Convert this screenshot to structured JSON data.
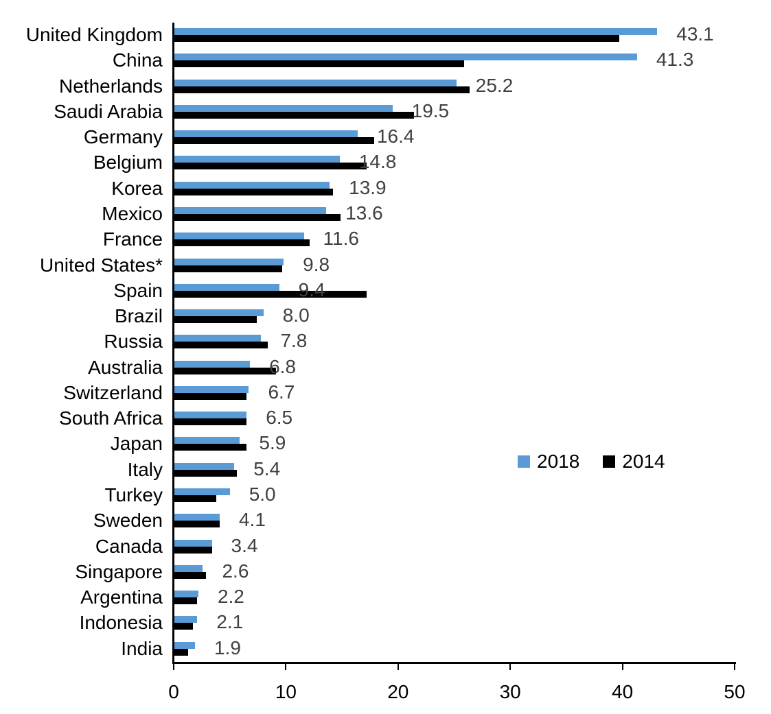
{
  "chart_data": {
    "type": "bar",
    "orientation": "horizontal",
    "title": "",
    "xlabel": "",
    "ylabel": "",
    "xlim": [
      0,
      50
    ],
    "xticks": [
      0,
      10,
      20,
      30,
      40,
      50
    ],
    "grid": false,
    "legend_position": "middle-right",
    "categories": [
      "United Kingdom",
      "China",
      "Netherlands",
      "Saudi Arabia",
      "Germany",
      "Belgium",
      "Korea",
      "Mexico",
      "France",
      "United States*",
      "Spain",
      "Brazil",
      "Russia",
      "Australia",
      "Switzerland",
      "South Africa",
      "Japan",
      "Italy",
      "Turkey",
      "Sweden",
      "Canada",
      "Singapore",
      "Argentina",
      "Indonesia",
      "India"
    ],
    "series": [
      {
        "name": "2018",
        "color": "#5B9BD5",
        "values": [
          43.1,
          41.3,
          25.2,
          19.5,
          16.4,
          14.8,
          13.9,
          13.6,
          11.6,
          9.8,
          9.4,
          8.0,
          7.8,
          6.8,
          6.7,
          6.5,
          5.9,
          5.4,
          5.0,
          4.1,
          3.4,
          2.6,
          2.2,
          2.1,
          1.9
        ],
        "data_labels_shown": true
      },
      {
        "name": "2014",
        "color": "#000000",
        "values": [
          39.7,
          25.9,
          26.4,
          21.4,
          17.9,
          17.2,
          14.2,
          14.9,
          12.1,
          9.7,
          17.2,
          7.4,
          8.4,
          9.1,
          6.5,
          6.5,
          6.5,
          5.6,
          3.8,
          4.1,
          3.4,
          2.9,
          2.1,
          1.7,
          1.3
        ],
        "data_labels_shown": false
      }
    ],
    "data_labels": [
      "43.1",
      "41.3",
      "25.2",
      "19.5",
      "16.4",
      "14.8",
      "13.9",
      "13.6",
      "11.6",
      "9.8",
      "9.4",
      "8.0",
      "7.8",
      "6.8",
      "6.7",
      "6.5",
      "5.9",
      "5.4",
      "5.0",
      "4.1",
      "3.4",
      "2.6",
      "2.2",
      "2.1",
      "1.9"
    ]
  },
  "legend": {
    "items": [
      {
        "label": "2018",
        "color": "#5B9BD5"
      },
      {
        "label": "2014",
        "color": "#000000"
      }
    ]
  },
  "colors": {
    "background": "#ffffff",
    "axis": "#000000",
    "value_label": "#404040",
    "category_label": "#000000"
  }
}
